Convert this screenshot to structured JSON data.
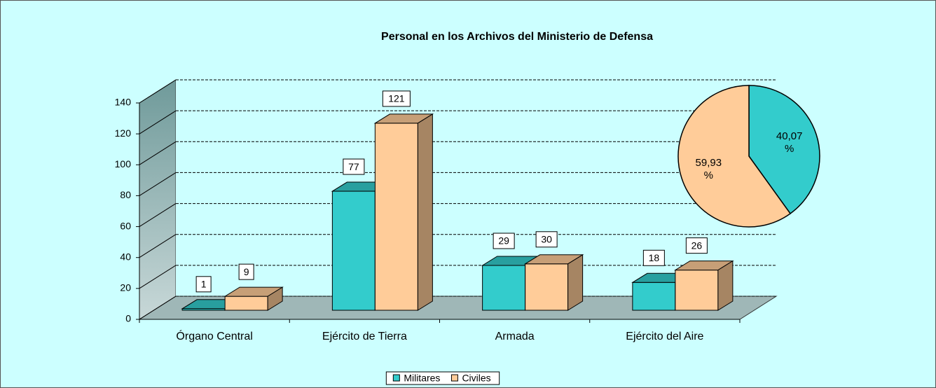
{
  "chart_data": [
    {
      "type": "bar",
      "title": "Personal en los Archivos del Ministerio de Defensa",
      "categories": [
        "Órgano Central",
        "Ejército de Tierra",
        "Armada",
        "Ejército del Aire"
      ],
      "series": [
        {
          "name": "Militares",
          "color": "#33cccc",
          "values": [
            1,
            77,
            29,
            18
          ]
        },
        {
          "name": "Civiles",
          "color": "#ffcc99",
          "values": [
            9,
            121,
            30,
            26
          ]
        }
      ],
      "ylim": [
        0,
        140
      ],
      "yticks": [
        0,
        20,
        40,
        60,
        80,
        100,
        120,
        140
      ],
      "grid": true,
      "legend": "bottom"
    },
    {
      "type": "pie",
      "values": [
        40.07,
        59.93
      ],
      "value_labels": [
        "40,07 %",
        "59,93 %"
      ],
      "colors": [
        "#33cccc",
        "#ffcc99"
      ]
    }
  ]
}
